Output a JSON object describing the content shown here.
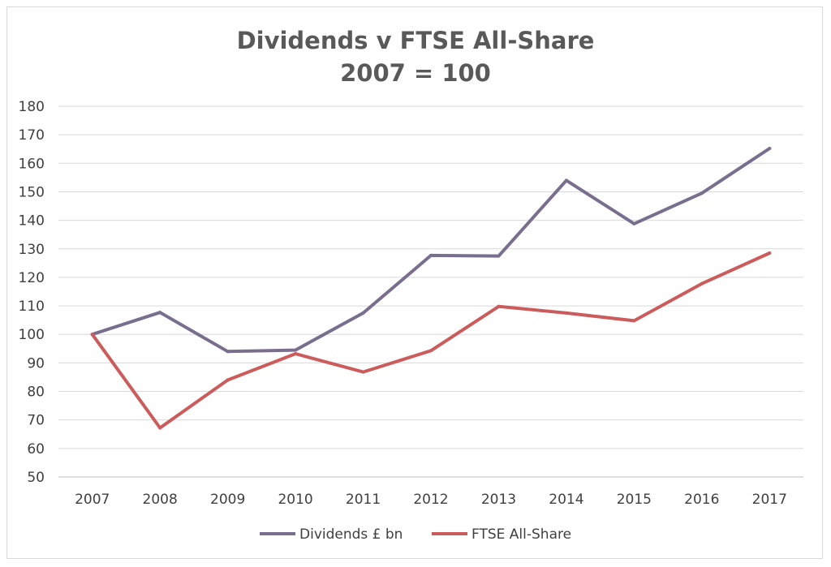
{
  "chart_data": {
    "type": "line",
    "title": "Dividends v FTSE All-Share",
    "subtitle": "2007 = 100",
    "xlabel": "",
    "ylabel": "",
    "ylim": [
      50,
      180
    ],
    "yticks": [
      "180",
      "170",
      "160",
      "150",
      "140",
      "130",
      "120",
      "110",
      "100",
      "90",
      "80",
      "70",
      "60",
      "50"
    ],
    "categories": [
      "2007",
      "2008",
      "2009",
      "2010",
      "2011",
      "2012",
      "2013",
      "2014",
      "2015",
      "2016",
      "2017"
    ],
    "grid": true,
    "legend_position": "bottom",
    "series": [
      {
        "name": "Dividends £ bn",
        "color": "#7a6e8e",
        "values": [
          100,
          107.7,
          94,
          94.5,
          107.5,
          127.7,
          127.5,
          154,
          138.8,
          149.5,
          165.2
        ]
      },
      {
        "name": "FTSE All-Share",
        "color": "#cc5b5b",
        "values": [
          100,
          67.2,
          84,
          93.2,
          86.8,
          94.3,
          109.8,
          107.5,
          104.8,
          117.8,
          128.5
        ]
      }
    ]
  }
}
